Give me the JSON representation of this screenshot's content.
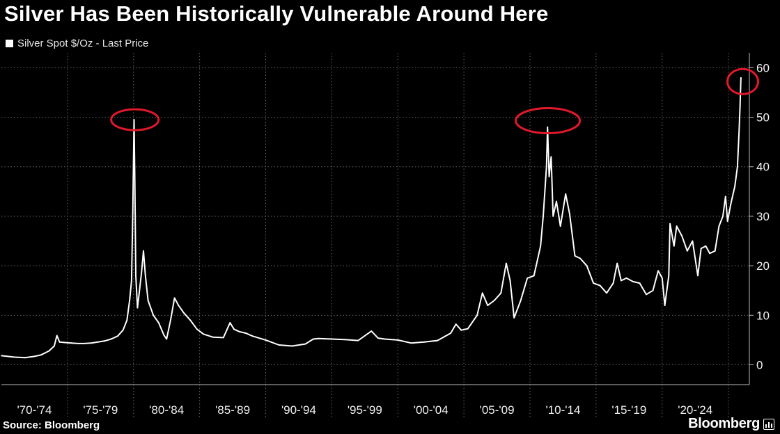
{
  "title": "Silver Has Been Historically Vulnerable Around Here",
  "source": "Source: Bloomberg",
  "brand": "Bloomberg",
  "colors": {
    "background": "#000000",
    "line": "#ffffff",
    "highlight": "#e0192b",
    "grid": "#666666"
  },
  "chart_data": {
    "type": "line",
    "series": [
      {
        "name": "Silver Spot $/Oz - Last Price",
        "points": [
          [
            1970.0,
            1.85
          ],
          [
            1971.0,
            1.55
          ],
          [
            1971.8,
            1.45
          ],
          [
            1972.5,
            1.7
          ],
          [
            1973.0,
            2.0
          ],
          [
            1973.6,
            2.8
          ],
          [
            1974.0,
            3.8
          ],
          [
            1974.2,
            5.9
          ],
          [
            1974.4,
            4.6
          ],
          [
            1974.8,
            4.5
          ],
          [
            1975.3,
            4.4
          ],
          [
            1975.8,
            4.3
          ],
          [
            1976.3,
            4.3
          ],
          [
            1976.8,
            4.4
          ],
          [
            1977.3,
            4.6
          ],
          [
            1977.8,
            4.8
          ],
          [
            1978.3,
            5.2
          ],
          [
            1978.8,
            5.8
          ],
          [
            1979.2,
            7.0
          ],
          [
            1979.5,
            9.0
          ],
          [
            1979.7,
            13.0
          ],
          [
            1979.85,
            17.0
          ],
          [
            1979.95,
            32.0
          ],
          [
            1980.04,
            49.5
          ],
          [
            1980.1,
            36.0
          ],
          [
            1980.17,
            18.0
          ],
          [
            1980.3,
            11.5
          ],
          [
            1980.45,
            15.0
          ],
          [
            1980.6,
            18.5
          ],
          [
            1980.75,
            23.0
          ],
          [
            1980.9,
            18.0
          ],
          [
            1981.1,
            13.0
          ],
          [
            1981.5,
            10.0
          ],
          [
            1981.9,
            8.5
          ],
          [
            1982.3,
            6.0
          ],
          [
            1982.5,
            5.2
          ],
          [
            1982.8,
            9.0
          ],
          [
            1983.1,
            13.5
          ],
          [
            1983.4,
            12.0
          ],
          [
            1983.8,
            10.5
          ],
          [
            1984.3,
            9.0
          ],
          [
            1984.8,
            7.2
          ],
          [
            1985.3,
            6.2
          ],
          [
            1986.0,
            5.6
          ],
          [
            1986.8,
            5.5
          ],
          [
            1987.3,
            8.5
          ],
          [
            1987.6,
            7.2
          ],
          [
            1988.0,
            6.7
          ],
          [
            1988.5,
            6.4
          ],
          [
            1989.0,
            5.8
          ],
          [
            1990.0,
            5.0
          ],
          [
            1991.0,
            4.0
          ],
          [
            1992.0,
            3.8
          ],
          [
            1993.0,
            4.2
          ],
          [
            1993.6,
            5.2
          ],
          [
            1994.0,
            5.3
          ],
          [
            1995.0,
            5.2
          ],
          [
            1996.0,
            5.1
          ],
          [
            1997.0,
            4.9
          ],
          [
            1998.0,
            6.8
          ],
          [
            1998.5,
            5.4
          ],
          [
            1999.0,
            5.2
          ],
          [
            2000.0,
            5.0
          ],
          [
            2001.0,
            4.4
          ],
          [
            2002.0,
            4.6
          ],
          [
            2003.0,
            4.9
          ],
          [
            2004.0,
            6.4
          ],
          [
            2004.4,
            8.2
          ],
          [
            2004.8,
            7.0
          ],
          [
            2005.3,
            7.3
          ],
          [
            2006.0,
            10.0
          ],
          [
            2006.4,
            14.5
          ],
          [
            2006.8,
            12.0
          ],
          [
            2007.3,
            13.0
          ],
          [
            2007.8,
            14.5
          ],
          [
            2008.2,
            20.5
          ],
          [
            2008.5,
            17.0
          ],
          [
            2008.8,
            9.5
          ],
          [
            2009.3,
            13.0
          ],
          [
            2009.8,
            17.5
          ],
          [
            2010.3,
            18.0
          ],
          [
            2010.8,
            24.0
          ],
          [
            2011.0,
            30.0
          ],
          [
            2011.25,
            40.0
          ],
          [
            2011.33,
            48.0
          ],
          [
            2011.45,
            38.0
          ],
          [
            2011.6,
            42.0
          ],
          [
            2011.75,
            30.0
          ],
          [
            2012.0,
            33.0
          ],
          [
            2012.3,
            28.0
          ],
          [
            2012.7,
            34.5
          ],
          [
            2013.0,
            30.5
          ],
          [
            2013.4,
            22.0
          ],
          [
            2013.8,
            21.5
          ],
          [
            2014.3,
            20.0
          ],
          [
            2014.8,
            16.5
          ],
          [
            2015.3,
            16.0
          ],
          [
            2015.8,
            14.5
          ],
          [
            2016.3,
            16.5
          ],
          [
            2016.6,
            20.5
          ],
          [
            2016.9,
            17.0
          ],
          [
            2017.3,
            17.5
          ],
          [
            2017.8,
            16.8
          ],
          [
            2018.3,
            16.5
          ],
          [
            2018.8,
            14.2
          ],
          [
            2019.3,
            15.0
          ],
          [
            2019.7,
            19.0
          ],
          [
            2020.0,
            17.5
          ],
          [
            2020.2,
            12.0
          ],
          [
            2020.5,
            18.0
          ],
          [
            2020.6,
            28.5
          ],
          [
            2020.9,
            24.0
          ],
          [
            2021.1,
            28.0
          ],
          [
            2021.5,
            26.0
          ],
          [
            2021.9,
            23.0
          ],
          [
            2022.3,
            25.0
          ],
          [
            2022.7,
            18.0
          ],
          [
            2022.95,
            23.5
          ],
          [
            2023.3,
            24.0
          ],
          [
            2023.6,
            22.5
          ],
          [
            2024.0,
            23.0
          ],
          [
            2024.3,
            28.0
          ],
          [
            2024.6,
            30.0
          ],
          [
            2024.8,
            34.0
          ],
          [
            2024.95,
            29.0
          ],
          [
            2025.2,
            32.5
          ],
          [
            2025.5,
            36.0
          ],
          [
            2025.7,
            40.0
          ],
          [
            2025.82,
            47.0
          ],
          [
            2025.9,
            52.5
          ],
          [
            2025.96,
            58.0
          ]
        ]
      }
    ],
    "x_axis": {
      "range": [
        1970,
        2026.6
      ],
      "tick_labels": [
        "'70-'74",
        "'75-'79",
        "'80-'84",
        "'85-'89",
        "'90-'94",
        "'95-'99",
        "'00-'04",
        "'05-'09",
        "'10-'14",
        "'15-'19",
        "'20-'24"
      ],
      "period_starts": [
        1970,
        1975,
        1980,
        1985,
        1990,
        1995,
        2000,
        2005,
        2010,
        2015,
        2020,
        2025
      ]
    },
    "y_axis": {
      "range": [
        -4,
        63
      ],
      "ticks": [
        0,
        10,
        20,
        30,
        40,
        50,
        60
      ],
      "position": "right"
    },
    "grid": true,
    "annotations": [
      {
        "type": "ellipse",
        "x": 1980.1,
        "y": 49.5
      },
      {
        "type": "ellipse",
        "x": 2011.35,
        "y": 49.3
      },
      {
        "type": "ellipse",
        "x": 2026.1,
        "y": 57.2
      }
    ]
  }
}
